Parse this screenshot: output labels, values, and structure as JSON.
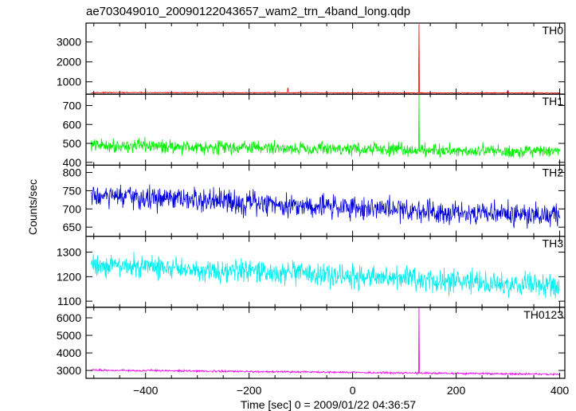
{
  "chart_data": {
    "type": "line",
    "title": "ae703049010_20090122043657_wam2_trn_4band_long.qdp",
    "xlabel": "Time [sec] 0 = 2009/01/22 04:36:57",
    "ylabel": "Counts/sec",
    "xlim": [
      -515,
      410
    ],
    "xticks": [
      -400,
      -200,
      0,
      200,
      400
    ],
    "xtick_labels": [
      "−400",
      "−200",
      "0",
      "200",
      "400"
    ],
    "x_start": -505,
    "x_end": 400,
    "n_points": 1100,
    "panels": [
      {
        "name": "TH0",
        "color": "#ff0000",
        "ylim": [
          380,
          3950
        ],
        "yticks": [
          1000,
          2000,
          3000
        ],
        "ytick_labels": [
          "1000",
          "2000",
          "3000"
        ],
        "baseline_start": 460,
        "baseline_end": 440,
        "noise": 20,
        "spikes": [
          {
            "x": 128,
            "y": 3900
          },
          {
            "x": -125,
            "y": 680
          },
          {
            "x": 300,
            "y": 560
          }
        ]
      },
      {
        "name": "TH1",
        "color": "#00ee00",
        "ylim": [
          385,
          760
        ],
        "yticks": [
          400,
          500,
          600,
          700
        ],
        "ytick_labels": [
          "400",
          "500",
          "600",
          "700"
        ],
        "baseline_start": 490,
        "baseline_end": 455,
        "noise": 30,
        "spikes": [
          {
            "x": 128,
            "y": 760
          }
        ]
      },
      {
        "name": "TH2",
        "color": "#0000dd",
        "ylim": [
          625,
          820
        ],
        "yticks": [
          650,
          700,
          750,
          800
        ],
        "ytick_labels": [
          "650",
          "700",
          "750",
          "800"
        ],
        "baseline_start": 735,
        "baseline_end": 680,
        "noise": 28,
        "spikes": []
      },
      {
        "name": "TH3",
        "color": "#00eeee",
        "ylim": [
          1075,
          1365
        ],
        "yticks": [
          1100,
          1200,
          1300
        ],
        "ytick_labels": [
          "1100",
          "1200",
          "1300"
        ],
        "baseline_start": 1250,
        "baseline_end": 1160,
        "noise": 40,
        "spikes": []
      },
      {
        "name": "TH0123",
        "color": "#ee00ee",
        "ylim": [
          2550,
          6600
        ],
        "yticks": [
          3000,
          4000,
          5000,
          6000
        ],
        "ytick_labels": [
          "3000",
          "4000",
          "5000",
          "6000"
        ],
        "baseline_start": 3020,
        "baseline_end": 2780,
        "noise": 45,
        "spikes": [
          {
            "x": 128,
            "y": 6600
          }
        ]
      }
    ]
  }
}
